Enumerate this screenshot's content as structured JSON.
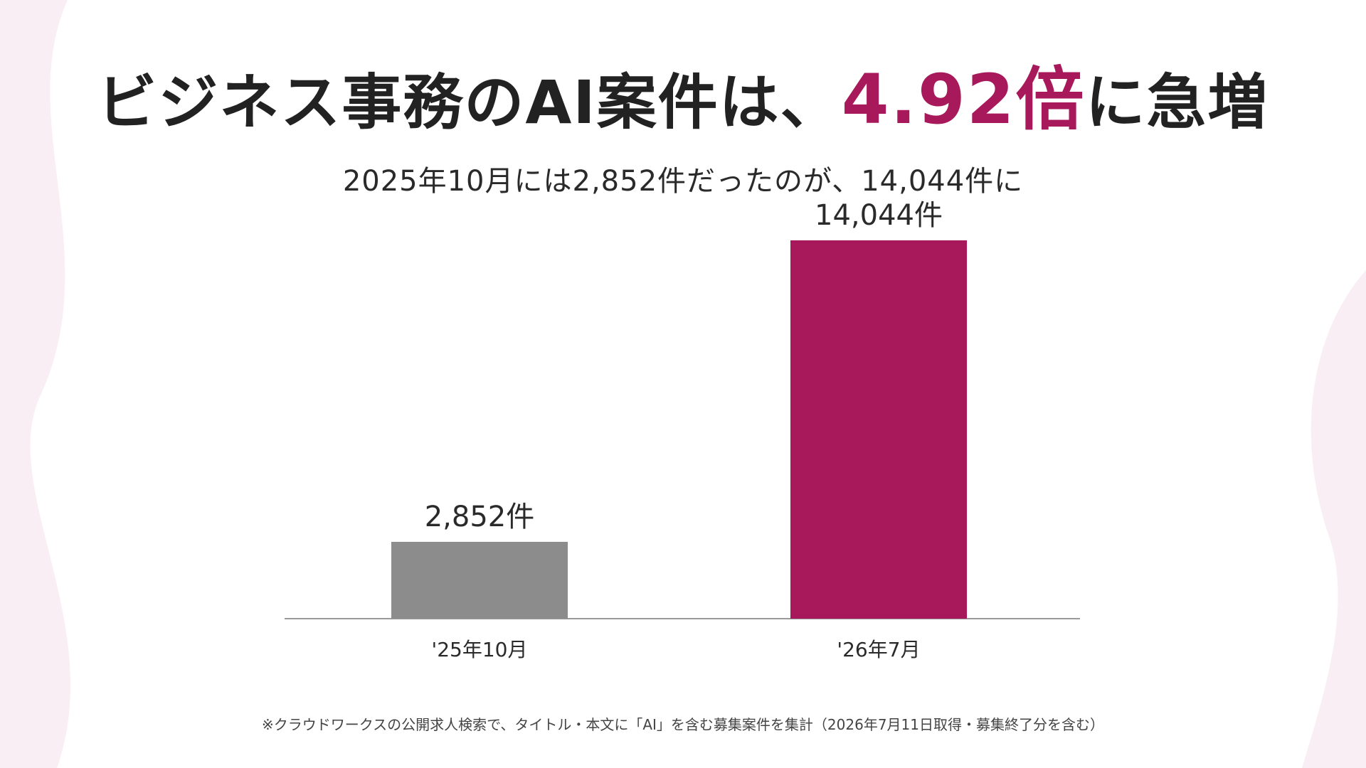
{
  "title": {
    "prefix": "ビジネス事務のAI案件は、",
    "highlight": "4.92倍",
    "suffix": "に急増"
  },
  "subtitle": "2025年10月には2,852件だったのが、14,044件に",
  "footnote": "※クラウドワークスの公開求人検索で、タイトル・本文に「AI」を含む募集案件を集計（2026年7月11日取得・募集終了分を含む）",
  "colors": {
    "accent": "#a8195b",
    "bar_old": "#8c8c8c",
    "bar_new": "#a8195b",
    "background_shape": "#f8eef3"
  },
  "chart_data": {
    "type": "bar",
    "categories": [
      "'25年10月",
      "'26年7月"
    ],
    "values": [
      2852,
      14044
    ],
    "value_labels": [
      "2,852件",
      "14,044件"
    ],
    "title": "",
    "xlabel": "",
    "ylabel": "",
    "ylim": [
      0,
      15000
    ],
    "grid": false,
    "legend": "none"
  }
}
